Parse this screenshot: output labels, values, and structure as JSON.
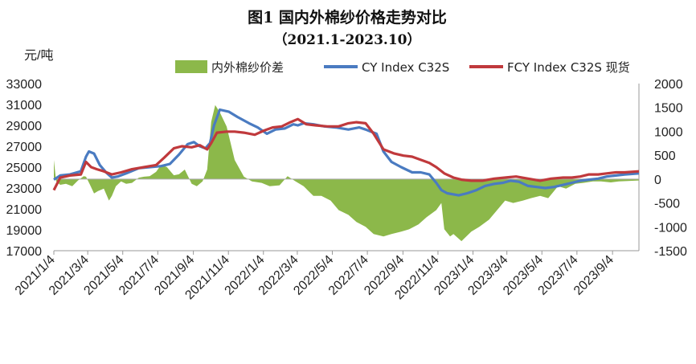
{
  "chart_data": {
    "type": "line",
    "title": "图1 国内外棉纱价格走势对比",
    "subtitle": "（2021.1-2023.10）",
    "ylabel": "元/吨",
    "ylim": [
      17000,
      33000
    ],
    "y2lim": [
      -1500,
      2000
    ],
    "yticks": [
      "33000",
      "31000",
      "29000",
      "27000",
      "25000",
      "23000",
      "21000",
      "19000",
      "17000"
    ],
    "y2ticks": [
      "2000",
      "1500",
      "1000",
      "500",
      "0",
      "-500",
      "-1000",
      "-1500"
    ],
    "xticks": [
      "2021/1/4",
      "2021/3/4",
      "2021/5/4",
      "2021/7/4",
      "2021/9/4",
      "2021/11/4",
      "2022/1/4",
      "2022/3/4",
      "2022/5/4",
      "2022/7/4",
      "2022/9/4",
      "2022/11/4",
      "2023/1/4",
      "2023/3/4",
      "2023/5/4",
      "2023/7/4",
      "2023/9/4"
    ],
    "x_range": [
      "2021/1/4",
      "2023/10/20"
    ],
    "legend_position": "top",
    "colors": {
      "diff": "#8cb84a",
      "cy": "#4a7bc1",
      "fcy": "#c0393c"
    },
    "series": [
      {
        "name": "内外棉纱价差",
        "axis": "right",
        "kind": "area",
        "x": [
          "2021/1/4",
          "2021/1/8",
          "2021/1/15",
          "2021/1/25",
          "2021/2/5",
          "2021/2/15",
          "2021/2/25",
          "2021/3/1",
          "2021/3/8",
          "2021/3/15",
          "2021/3/22",
          "2021/4/1",
          "2021/4/10",
          "2021/4/15",
          "2021/4/22",
          "2021/5/1",
          "2021/5/10",
          "2021/5/20",
          "2021/6/1",
          "2021/6/10",
          "2021/6/20",
          "2021/7/1",
          "2021/7/10",
          "2021/7/20",
          "2021/8/1",
          "2021/8/10",
          "2021/8/20",
          "2021/9/1",
          "2021/9/10",
          "2021/9/20",
          "2021/9/28",
          "2021/10/5",
          "2021/10/12",
          "2021/10/20",
          "2021/11/1",
          "2021/11/15",
          "2021/12/1",
          "2021/12/15",
          "2022/1/1",
          "2022/1/15",
          "2022/2/1",
          "2022/2/15",
          "2022/3/1",
          "2022/3/15",
          "2022/4/1",
          "2022/4/15",
          "2022/5/1",
          "2022/5/15",
          "2022/6/1",
          "2022/6/15",
          "2022/7/1",
          "2022/7/15",
          "2022/8/1",
          "2022/8/15",
          "2022/9/1",
          "2022/9/15",
          "2022/10/1",
          "2022/10/15",
          "2022/11/1",
          "2022/11/10",
          "2022/11/15",
          "2022/11/25",
          "2022/12/1",
          "2022/12/15",
          "2023/1/1",
          "2023/1/15",
          "2023/2/1",
          "2023/2/15",
          "2023/3/1",
          "2023/3/15",
          "2023/4/1",
          "2023/4/15",
          "2023/5/1",
          "2023/5/15",
          "2023/6/1",
          "2023/6/15",
          "2023/7/1",
          "2023/7/15",
          "2023/8/1",
          "2023/8/15",
          "2023/9/1",
          "2023/9/15",
          "2023/10/1",
          "2023/10/20"
        ],
        "values": [
          400,
          -50,
          -120,
          -100,
          -150,
          -30,
          60,
          50,
          -120,
          -300,
          -250,
          -200,
          -450,
          -350,
          -150,
          -50,
          -100,
          -80,
          30,
          50,
          60,
          150,
          300,
          250,
          80,
          100,
          200,
          -100,
          -150,
          -50,
          200,
          1200,
          1550,
          1400,
          1100,
          400,
          50,
          -50,
          -80,
          -150,
          -130,
          60,
          -50,
          -150,
          -350,
          -350,
          -450,
          -650,
          -750,
          -900,
          -1000,
          -1150,
          -1200,
          -1150,
          -1100,
          -1050,
          -950,
          -800,
          -650,
          -500,
          -1050,
          -1200,
          -1150,
          -1300,
          -1100,
          -1000,
          -850,
          -650,
          -450,
          -500,
          -450,
          -400,
          -350,
          -400,
          -150,
          -200,
          -100,
          -80,
          -50,
          -50,
          -70,
          -50,
          -40,
          -30
        ]
      },
      {
        "name": "CY Index C32S",
        "axis": "left",
        "kind": "line",
        "x": [
          "2021/1/4",
          "2021/1/15",
          "2021/2/1",
          "2021/2/20",
          "2021/3/1",
          "2021/3/6",
          "2021/3/15",
          "2021/3/25",
          "2021/4/5",
          "2021/4/15",
          "2021/4/25",
          "2021/5/10",
          "2021/6/1",
          "2021/6/20",
          "2021/7/10",
          "2021/7/25",
          "2021/8/10",
          "2021/8/25",
          "2021/9/5",
          "2021/9/15",
          "2021/9/25",
          "2021/10/3",
          "2021/10/10",
          "2021/10/20",
          "2021/11/5",
          "2021/11/20",
          "2021/12/10",
          "2021/12/25",
          "2022/1/10",
          "2022/1/25",
          "2022/2/10",
          "2022/2/25",
          "2022/3/5",
          "2022/3/15",
          "2022/4/1",
          "2022/4/20",
          "2022/5/10",
          "2022/6/1",
          "2022/6/20",
          "2022/7/1",
          "2022/7/10",
          "2022/7/20",
          "2022/8/1",
          "2022/8/15",
          "2022/9/1",
          "2022/9/20",
          "2022/10/5",
          "2022/10/20",
          "2022/11/1",
          "2022/11/10",
          "2022/11/20",
          "2022/12/10",
          "2022/12/25",
          "2023/1/10",
          "2023/1/25",
          "2023/2/10",
          "2023/2/25",
          "2023/3/10",
          "2023/3/25",
          "2023/4/10",
          "2023/4/25",
          "2023/5/10",
          "2023/5/25",
          "2023/6/10",
          "2023/6/25",
          "2023/7/10",
          "2023/7/25",
          "2023/8/10",
          "2023/8/25",
          "2023/9/10",
          "2023/9/25",
          "2023/10/20"
        ],
        "values": [
          23800,
          24200,
          24300,
          24600,
          26000,
          26500,
          26300,
          25200,
          24500,
          24000,
          24100,
          24400,
          24900,
          25000,
          25100,
          25300,
          26200,
          27200,
          27400,
          27000,
          26800,
          27300,
          29000,
          30500,
          30300,
          29800,
          29200,
          28800,
          28200,
          28600,
          28700,
          29100,
          29000,
          29200,
          29100,
          28900,
          28800,
          28600,
          28800,
          28600,
          28400,
          28200,
          26500,
          25500,
          25000,
          24500,
          24500,
          24300,
          23500,
          22800,
          22500,
          22300,
          22500,
          22800,
          23200,
          23400,
          23500,
          23700,
          23600,
          23200,
          23100,
          23000,
          23100,
          23300,
          23500,
          23700,
          23800,
          23900,
          24100,
          24200,
          24300,
          24400
        ]
      },
      {
        "name": "FCY Index C32S 现货",
        "axis": "left",
        "kind": "line",
        "x": [
          "2021/1/4",
          "2021/1/15",
          "2021/2/1",
          "2021/2/20",
          "2021/3/1",
          "2021/3/10",
          "2021/3/20",
          "2021/4/1",
          "2021/4/15",
          "2021/5/1",
          "2021/5/20",
          "2021/6/10",
          "2021/7/1",
          "2021/7/15",
          "2021/8/1",
          "2021/8/15",
          "2021/9/1",
          "2021/9/15",
          "2021/9/28",
          "2021/10/5",
          "2021/10/15",
          "2021/11/1",
          "2021/11/15",
          "2021/12/1",
          "2021/12/20",
          "2022/1/5",
          "2022/1/20",
          "2022/2/5",
          "2022/2/20",
          "2022/3/5",
          "2022/3/20",
          "2022/4/5",
          "2022/4/25",
          "2022/5/15",
          "2022/6/1",
          "2022/6/15",
          "2022/7/1",
          "2022/7/15",
          "2022/8/1",
          "2022/8/20",
          "2022/9/5",
          "2022/9/20",
          "2022/10/5",
          "2022/10/20",
          "2022/11/1",
          "2022/11/15",
          "2022/12/1",
          "2022/12/15",
          "2023/1/1",
          "2023/1/20",
          "2023/2/10",
          "2023/3/1",
          "2023/3/20",
          "2023/4/10",
          "2023/5/1",
          "2023/5/20",
          "2023/6/10",
          "2023/6/25",
          "2023/7/10",
          "2023/7/25",
          "2023/8/10",
          "2023/8/25",
          "2023/9/10",
          "2023/9/25",
          "2023/10/20"
        ],
        "values": [
          22800,
          24000,
          24200,
          24300,
          25500,
          25000,
          24800,
          24600,
          24300,
          24500,
          24800,
          25000,
          25200,
          25900,
          26800,
          27000,
          26900,
          27100,
          26700,
          27300,
          28300,
          28400,
          28400,
          28300,
          28100,
          28500,
          28800,
          28900,
          29300,
          29600,
          29100,
          29000,
          28900,
          28900,
          29200,
          29300,
          29200,
          28200,
          26700,
          26300,
          26100,
          26000,
          25700,
          25400,
          25000,
          24400,
          24000,
          23800,
          23700,
          23700,
          23900,
          24000,
          24100,
          23900,
          23700,
          23900,
          24000,
          24000,
          24100,
          24300,
          24300,
          24400,
          24500,
          24500,
          24600
        ]
      }
    ]
  }
}
